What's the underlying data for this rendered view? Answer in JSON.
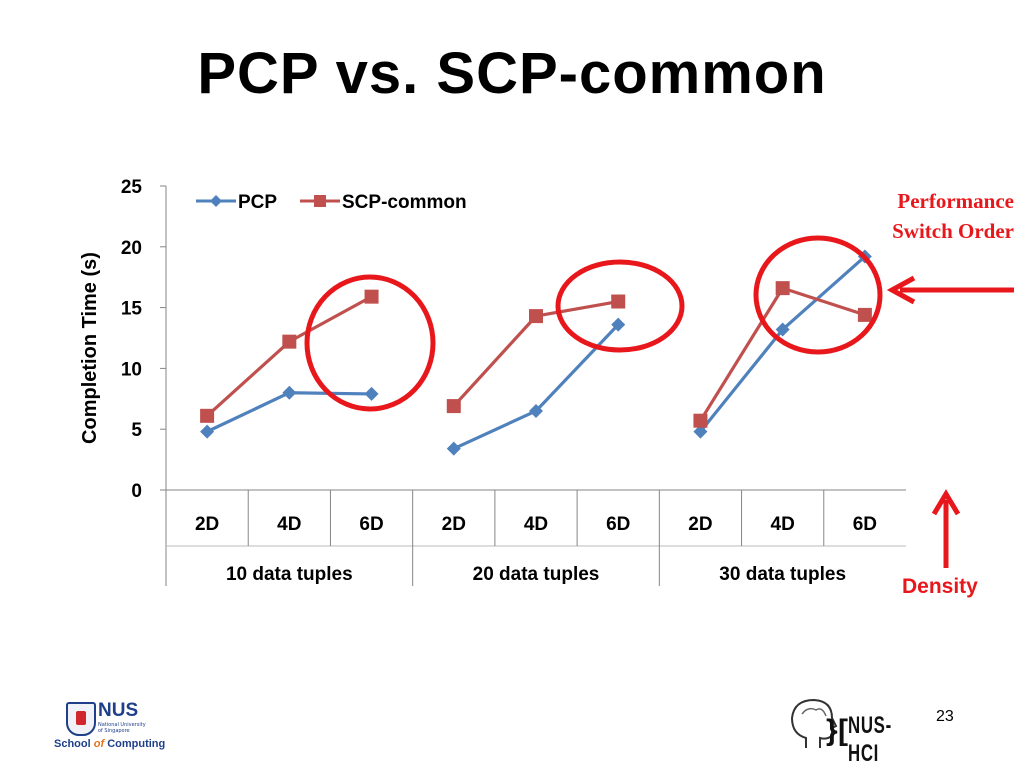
{
  "slide": {
    "title": "PCP vs. SCP-common",
    "annotation_performance": "Performance Switch Order",
    "annotation_density": "Density",
    "page_number": "23",
    "logo_nus": "NUS",
    "logo_nus_sub": "National University of Singapore",
    "logo_school_pre": "School",
    "logo_school_of": "of",
    "logo_school_post": "Computing",
    "logo_hci": "NUS-HCI",
    "colors": {
      "annotation": "#e8171b",
      "pcp": "#4f81bd",
      "scp": "#c0504d"
    }
  },
  "chart_data": {
    "type": "line",
    "title": "",
    "ylabel": "Completion Time (s)",
    "xlabel": "",
    "ylim": [
      0,
      25
    ],
    "yticks": [
      0,
      5,
      10,
      15,
      20,
      25
    ],
    "legend": "top-left",
    "grid": false,
    "groups": [
      {
        "label": "10 data tuples",
        "categories": [
          "2D",
          "4D",
          "6D"
        ]
      },
      {
        "label": "20 data tuples",
        "categories": [
          "2D",
          "4D",
          "6D"
        ]
      },
      {
        "label": "30 data tuples",
        "categories": [
          "2D",
          "4D",
          "6D"
        ]
      }
    ],
    "series": [
      {
        "name": "PCP",
        "color": "#4f81bd",
        "marker": "diamond",
        "values": [
          [
            4.8,
            8.0,
            7.9
          ],
          [
            3.4,
            6.5,
            13.6
          ],
          [
            4.8,
            13.2,
            19.2
          ]
        ]
      },
      {
        "name": "SCP-common",
        "color": "#c0504d",
        "marker": "square",
        "values": [
          [
            6.1,
            12.2,
            15.9
          ],
          [
            6.9,
            14.3,
            15.5
          ],
          [
            5.7,
            16.6,
            14.4
          ]
        ]
      }
    ]
  }
}
